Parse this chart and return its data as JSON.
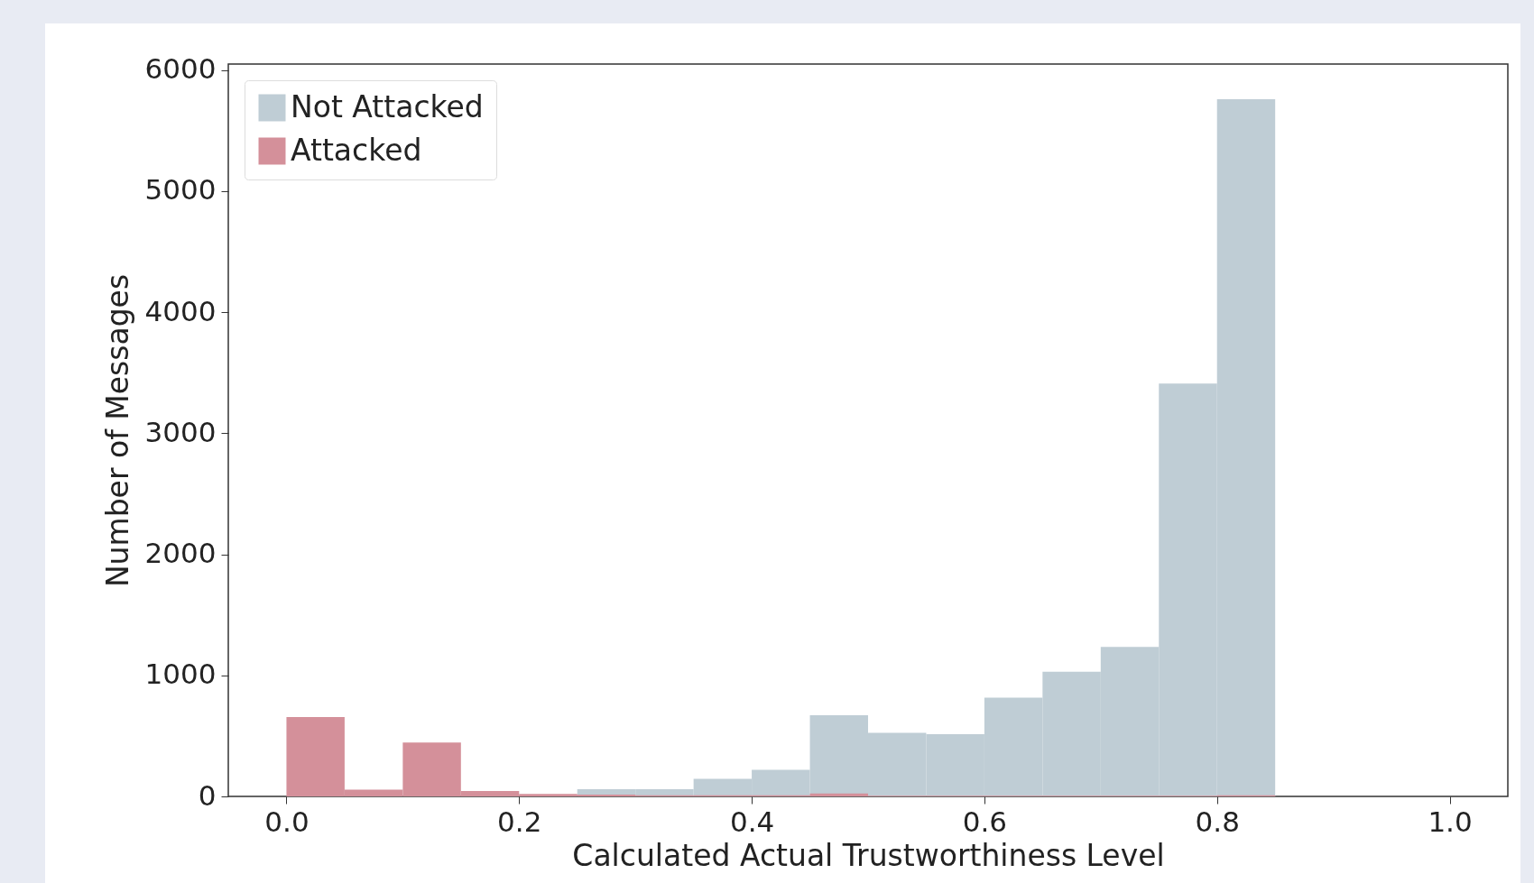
{
  "chart_data": {
    "type": "histogram",
    "xlabel": "Calculated Actual Trustworthiness Level",
    "ylabel": "Number of Messages",
    "bins": [
      0,
      0.05,
      0.1,
      0.15,
      0.2,
      0.25,
      0.3,
      0.35,
      0.4,
      0.45,
      0.5,
      0.55,
      0.6,
      0.65,
      0.7,
      0.75,
      0.8,
      0.85
    ],
    "series": [
      {
        "name": "Not Attacked",
        "color": "#bfcdd5",
        "values": [
          0,
          0,
          0,
          0,
          0,
          60,
          60,
          145,
          220,
          670,
          525,
          515,
          815,
          1030,
          1235,
          3410,
          5760
        ]
      },
      {
        "name": "Attacked",
        "color": "#d4909a",
        "values": [
          655,
          55,
          445,
          45,
          20,
          15,
          10,
          10,
          10,
          25,
          5,
          5,
          5,
          5,
          5,
          5,
          10
        ]
      }
    ],
    "xlim": [
      -0.05,
      1.05
    ],
    "ylim": [
      0,
      6050
    ],
    "xticks": [
      {
        "value": 0,
        "label": "0.0"
      },
      {
        "value": 0.2,
        "label": "0.2"
      },
      {
        "value": 0.4,
        "label": "0.4"
      },
      {
        "value": 0.6,
        "label": "0.6"
      },
      {
        "value": 0.8,
        "label": "0.8"
      },
      {
        "value": 1,
        "label": "1.0"
      }
    ],
    "yticks": [
      0,
      1000,
      2000,
      3000,
      4000,
      5000,
      6000
    ],
    "legend": "top left",
    "grid": false
  }
}
